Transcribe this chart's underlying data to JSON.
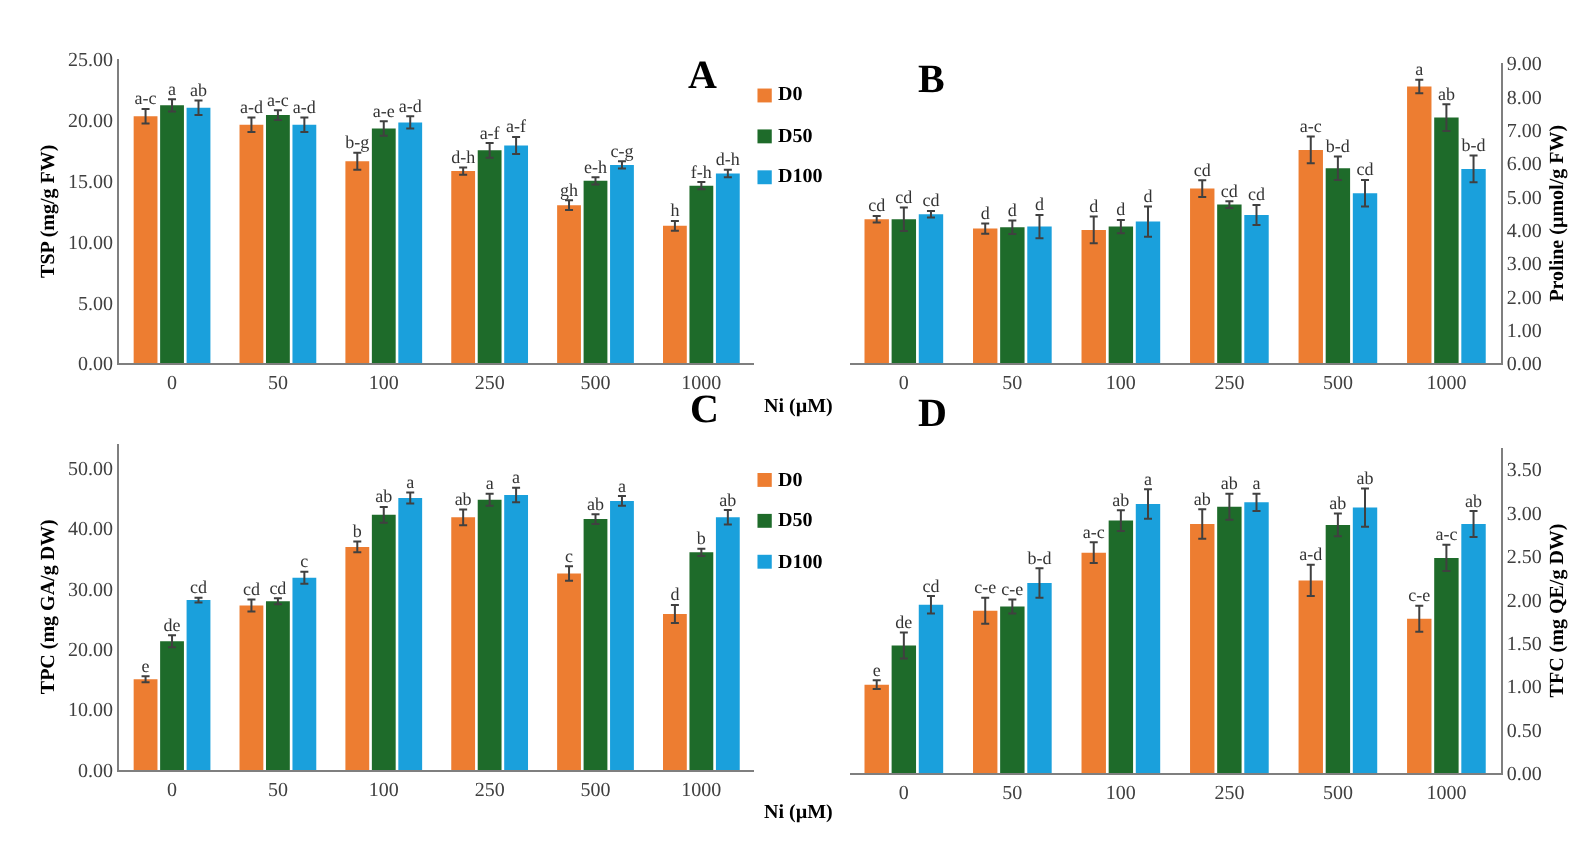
{
  "chart_data": [
    {
      "type": "bar",
      "title": "A",
      "xlabel": "Ni (µM)",
      "ylabel": "TSP (mg/g FW)",
      "categories": [
        "0",
        "50",
        "100",
        "250",
        "500",
        "1000"
      ],
      "ylim": [
        0,
        25
      ],
      "yticks": [
        {
          "value": 0,
          "label": "0.00"
        },
        {
          "value": 5,
          "label": "5.00"
        },
        {
          "value": 10,
          "label": "10.00"
        },
        {
          "value": 15,
          "label": "15.00"
        },
        {
          "value": 20,
          "label": "20.00"
        },
        {
          "value": 25,
          "label": "25.00"
        }
      ],
      "legend": "right",
      "series": [
        {
          "name": "D0",
          "color": "#ed7d31",
          "values": [
            20.3,
            19.6,
            16.6,
            15.8,
            13.0,
            11.3
          ],
          "errors": [
            0.6,
            0.6,
            0.7,
            0.3,
            0.4,
            0.4
          ],
          "value_labels": [
            "a-c",
            "a-d",
            "b-g",
            "d-h",
            "gh",
            "h"
          ]
        },
        {
          "name": "D50",
          "color": "#1e6b2a",
          "values": [
            21.2,
            20.4,
            19.3,
            17.5,
            15.0,
            14.6
          ],
          "errors": [
            0.5,
            0.4,
            0.6,
            0.6,
            0.3,
            0.3
          ],
          "value_labels": [
            "a",
            "a-c",
            "a-e",
            "a-f",
            "e-h",
            "f-h"
          ]
        },
        {
          "name": "D100",
          "color": "#1aa0dc",
          "values": [
            21.0,
            19.6,
            19.8,
            17.9,
            16.3,
            15.6
          ],
          "errors": [
            0.6,
            0.6,
            0.5,
            0.7,
            0.3,
            0.3
          ],
          "value_labels": [
            "ab",
            "a-d",
            "a-d",
            "a-f",
            "c-g",
            "d-h"
          ]
        }
      ]
    },
    {
      "type": "bar",
      "title": "B",
      "ylabel": "Proline (µmol/g FW)",
      "categories": [
        "0",
        "50",
        "100",
        "250",
        "500",
        "1000"
      ],
      "ylim": [
        0,
        9
      ],
      "yticks": [
        {
          "value": 0,
          "label": "0.00"
        },
        {
          "value": 1,
          "label": "1.00"
        },
        {
          "value": 2,
          "label": "2.00"
        },
        {
          "value": 3,
          "label": "3.00"
        },
        {
          "value": 4,
          "label": "4.00"
        },
        {
          "value": 5,
          "label": "5.00"
        },
        {
          "value": 6,
          "label": "6.00"
        },
        {
          "value": 7,
          "label": "7.00"
        },
        {
          "value": 8,
          "label": "8.00"
        },
        {
          "value": 9,
          "label": "9.00"
        }
      ],
      "series": [
        {
          "color": "#ed7d31",
          "values": [
            4.32,
            4.04,
            4.0,
            5.24,
            6.4,
            8.3
          ],
          "errors": [
            0.1,
            0.15,
            0.4,
            0.25,
            0.4,
            0.2
          ],
          "value_labels": [
            "cd",
            "d",
            "d",
            "cd",
            "a-c",
            "a"
          ]
        },
        {
          "color": "#1e6b2a",
          "values": [
            4.32,
            4.08,
            4.1,
            4.76,
            5.85,
            7.37
          ],
          "errors": [
            0.35,
            0.2,
            0.2,
            0.1,
            0.35,
            0.4
          ],
          "value_labels": [
            "cd",
            "d",
            "d",
            "cd",
            "b-d",
            "ab"
          ]
        },
        {
          "color": "#1aa0dc",
          "values": [
            4.47,
            4.1,
            4.25,
            4.45,
            5.1,
            5.83
          ],
          "errors": [
            0.1,
            0.35,
            0.45,
            0.3,
            0.4,
            0.4
          ],
          "value_labels": [
            "cd",
            "d",
            "d",
            "cd",
            "cd",
            "b-d"
          ]
        }
      ]
    },
    {
      "type": "bar",
      "title": "C",
      "xlabel": "Ni (µM)",
      "ylabel": "TPC (mg GA/g DW)",
      "categories": [
        "0",
        "50",
        "100",
        "250",
        "500",
        "1000"
      ],
      "ylim": [
        0,
        54
      ],
      "yticks": [
        {
          "value": 0,
          "label": "0.00"
        },
        {
          "value": 10,
          "label": "10.00"
        },
        {
          "value": 20,
          "label": "20.00"
        },
        {
          "value": 30,
          "label": "30.00"
        },
        {
          "value": 40,
          "label": "40.00"
        },
        {
          "value": 50,
          "label": "50.00"
        }
      ],
      "legend": "right",
      "series": [
        {
          "name": "D0",
          "color": "#ed7d31",
          "values": [
            15.0,
            27.2,
            36.9,
            41.8,
            32.5,
            25.8
          ],
          "errors": [
            0.5,
            1.0,
            0.9,
            1.3,
            1.2,
            1.5
          ],
          "value_labels": [
            "e",
            "cd",
            "b",
            "ab",
            "c",
            "d"
          ]
        },
        {
          "name": "D50",
          "color": "#1e6b2a",
          "values": [
            21.3,
            27.9,
            42.2,
            44.7,
            41.5,
            36.0
          ],
          "errors": [
            1.0,
            0.5,
            1.3,
            1.0,
            0.8,
            0.6
          ],
          "value_labels": [
            "de",
            "cd",
            "ab",
            "a",
            "ab",
            "b"
          ]
        },
        {
          "name": "D100",
          "color": "#1aa0dc",
          "values": [
            28.1,
            31.8,
            45.0,
            45.5,
            44.5,
            41.8
          ],
          "errors": [
            0.4,
            1.0,
            0.9,
            1.2,
            0.8,
            1.2
          ],
          "value_labels": [
            "cd",
            "c",
            "a",
            "a",
            "a",
            "ab"
          ]
        }
      ]
    },
    {
      "type": "bar",
      "title": "D",
      "ylabel": "TFC (mg QE/g DW)",
      "categories": [
        "0",
        "50",
        "100",
        "250",
        "500",
        "1000"
      ],
      "ylim": [
        0,
        3.75
      ],
      "yticks": [
        {
          "value": 0,
          "label": "0.00"
        },
        {
          "value": 0.5,
          "label": "0.50"
        },
        {
          "value": 1,
          "label": "1.00"
        },
        {
          "value": 1.5,
          "label": "1.50"
        },
        {
          "value": 2,
          "label": "2.00"
        },
        {
          "value": 2.5,
          "label": "2.50"
        },
        {
          "value": 3,
          "label": "3.00"
        },
        {
          "value": 3.5,
          "label": "3.50"
        }
      ],
      "series": [
        {
          "color": "#ed7d31",
          "values": [
            1.02,
            1.87,
            2.54,
            2.87,
            2.22,
            1.78
          ],
          "errors": [
            0.05,
            0.15,
            0.12,
            0.17,
            0.18,
            0.15
          ],
          "value_labels": [
            "e",
            "c-e",
            "a-c",
            "ab",
            "a-d",
            "c-e"
          ]
        },
        {
          "color": "#1e6b2a",
          "values": [
            1.47,
            1.92,
            2.91,
            3.07,
            2.86,
            2.48
          ],
          "errors": [
            0.15,
            0.08,
            0.12,
            0.15,
            0.13,
            0.15
          ],
          "value_labels": [
            "de",
            "c-e",
            "ab",
            "ab",
            "ab",
            "a-c"
          ]
        },
        {
          "color": "#1aa0dc",
          "values": [
            1.94,
            2.19,
            3.1,
            3.12,
            3.06,
            2.87
          ],
          "errors": [
            0.1,
            0.17,
            0.17,
            0.1,
            0.22,
            0.15
          ],
          "value_labels": [
            "cd",
            "b-d",
            "a",
            "a",
            "ab",
            "ab"
          ]
        }
      ]
    }
  ]
}
